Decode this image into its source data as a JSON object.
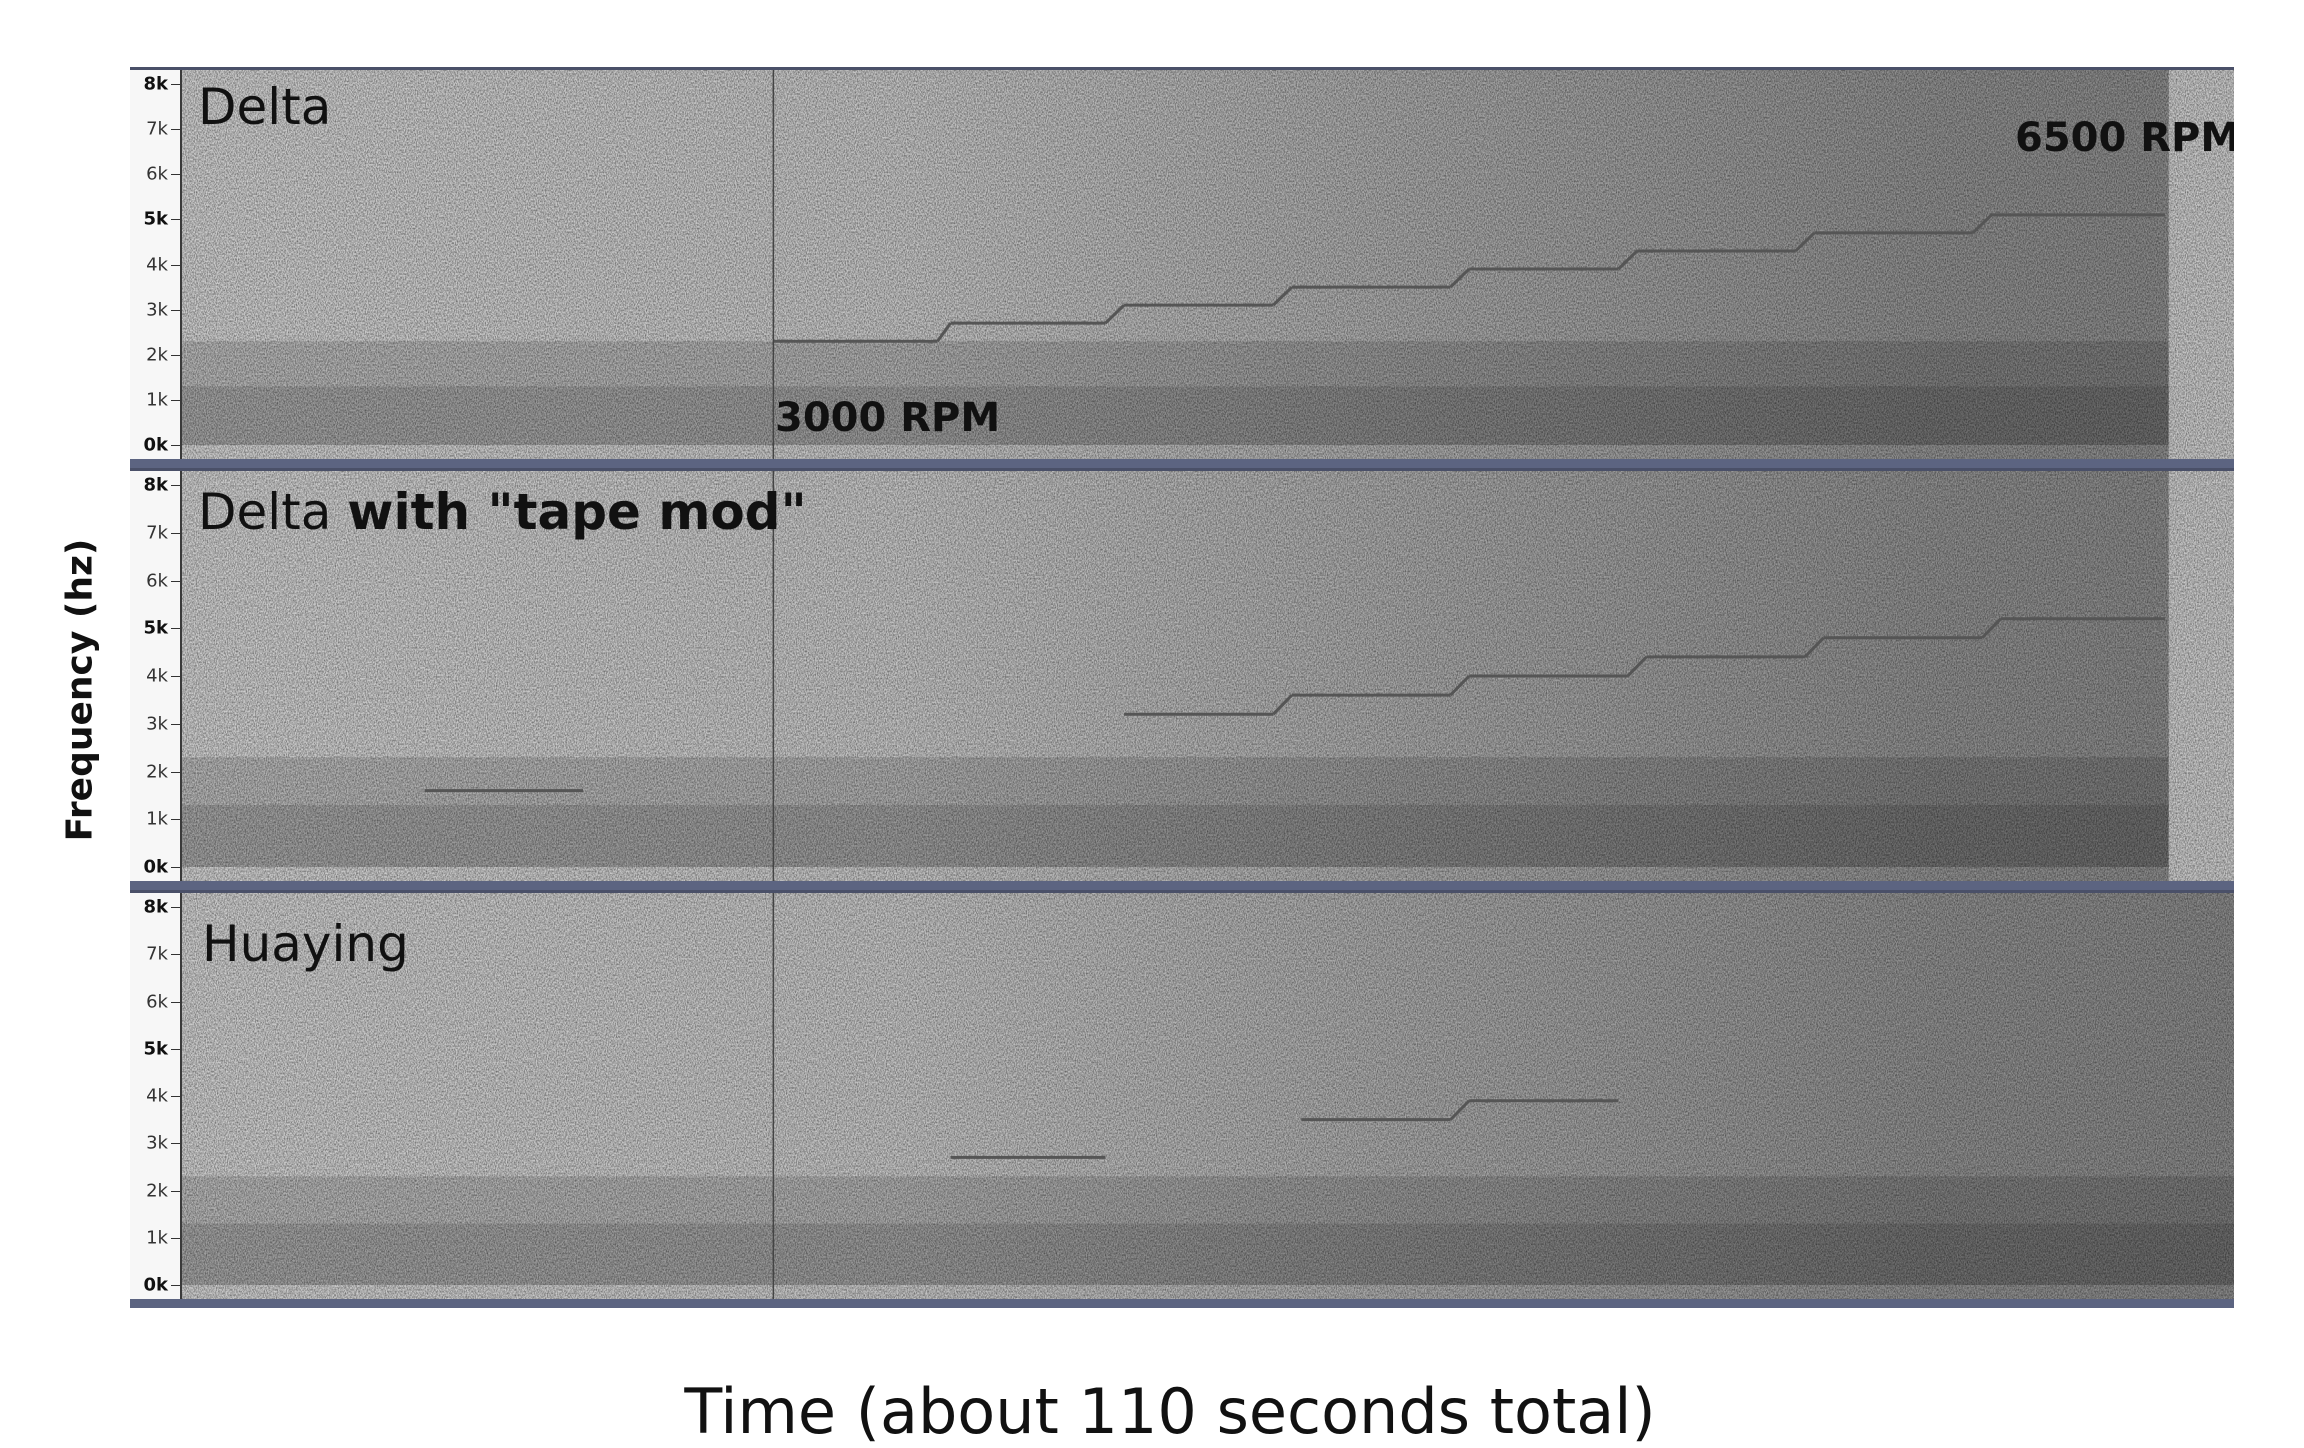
{
  "chart_data": {
    "type": "heatmap",
    "xlabel": "Time (about 110 seconds total)",
    "ylabel": "Frequency (hz)",
    "y_ticks": [
      {
        "label": "0k",
        "value": 0,
        "bold": true
      },
      {
        "label": "1k",
        "value": 1000,
        "bold": false
      },
      {
        "label": "2k",
        "value": 2000,
        "bold": false
      },
      {
        "label": "3k",
        "value": 3000,
        "bold": false
      },
      {
        "label": "4k",
        "value": 4000,
        "bold": false
      },
      {
        "label": "5k",
        "value": 5000,
        "bold": true
      },
      {
        "label": "6k",
        "value": 6000,
        "bold": false
      },
      {
        "label": "7k",
        "value": 7000,
        "bold": false
      },
      {
        "label": "8k",
        "value": 8000,
        "bold": true
      }
    ],
    "ylim": [
      0,
      8000
    ],
    "xlim": [
      0,
      110
    ],
    "panels": [
      {
        "title_regular": "Delta",
        "title_bold": "",
        "marker_time": 31.7,
        "end_time": 106.5,
        "tone_steps": [
          {
            "t0": 31.7,
            "t1": 40.5,
            "f": 2300
          },
          {
            "t0": 41.2,
            "t1": 49.5,
            "f": 2700
          },
          {
            "t0": 50.5,
            "t1": 58.5,
            "f": 3100
          },
          {
            "t0": 59.5,
            "t1": 68.0,
            "f": 3500
          },
          {
            "t0": 69.0,
            "t1": 77.0,
            "f": 3900
          },
          {
            "t0": 78.0,
            "t1": 86.5,
            "f": 4300
          },
          {
            "t0": 87.5,
            "t1": 96.0,
            "f": 4700
          },
          {
            "t0": 97.0,
            "t1": 106.3,
            "f": 5100
          }
        ],
        "annotations": [
          {
            "text": "3000 RPM"
          },
          {
            "text": "6500 RPM"
          }
        ]
      },
      {
        "title_regular": "Delta ",
        "title_bold": "with \"tape mod\"",
        "marker_time": 31.7,
        "end_time": 106.5,
        "tone_steps": [
          {
            "t0": 13.0,
            "t1": 21.5,
            "f": 1600
          },
          {
            "t0": 50.5,
            "t1": 58.5,
            "f": 3200
          },
          {
            "t0": 59.5,
            "t1": 68.0,
            "f": 3600
          },
          {
            "t0": 69.0,
            "t1": 77.5,
            "f": 4000
          },
          {
            "t0": 78.5,
            "t1": 87.0,
            "f": 4400
          },
          {
            "t0": 88.0,
            "t1": 96.5,
            "f": 4800
          },
          {
            "t0": 97.5,
            "t1": 106.3,
            "f": 5200
          }
        ],
        "annotations": []
      },
      {
        "title_regular": "Huaying",
        "title_bold": "",
        "marker_time": 31.7,
        "end_time": 110,
        "tone_steps": [
          {
            "t0": 41.2,
            "t1": 49.5,
            "f": 2700
          },
          {
            "t0": 60.0,
            "t1": 68.0,
            "f": 3500
          },
          {
            "t0": 69.0,
            "t1": 77.0,
            "f": 3900
          }
        ],
        "annotations": []
      }
    ]
  }
}
